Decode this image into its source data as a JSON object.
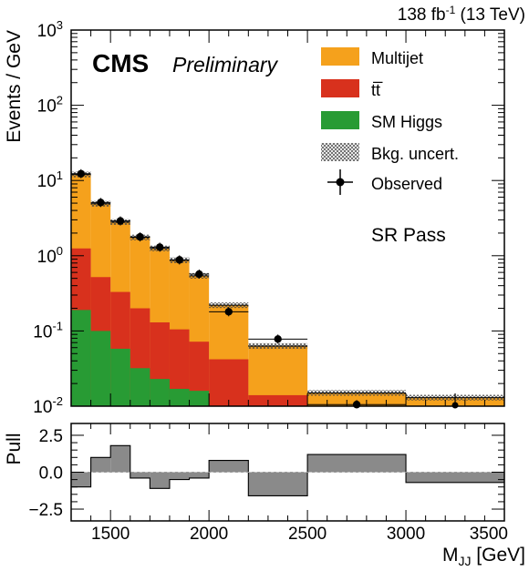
{
  "chart_data": [
    {
      "type": "stacked-step-histogram",
      "panel": "main",
      "lumi_label": {
        "value": "138 fb",
        "sup": "-1",
        "suffix": " (13 TeV)"
      },
      "experiment": "CMS",
      "status": "Preliminary",
      "region": "SR Pass",
      "ylabel": "Events / GeV",
      "yscale": "log",
      "ylim": [
        0.01,
        1000
      ],
      "xlim": [
        1300,
        3500
      ],
      "bin_edges": [
        1300,
        1400,
        1500,
        1600,
        1700,
        1800,
        1900,
        2000,
        2200,
        2500,
        3000,
        3500
      ],
      "series": [
        {
          "name": "Multijet",
          "color": "#f5a11c",
          "stack_top": [
            12.0,
            4.9,
            2.8,
            1.75,
            1.25,
            0.87,
            0.54,
            0.22,
            0.063,
            0.015,
            0.013
          ]
        },
        {
          "name": "tt̅",
          "color": "#d8311d",
          "stack_top": [
            1.25,
            0.52,
            0.33,
            0.2,
            0.13,
            0.105,
            0.072,
            0.042,
            0.014,
            0.0,
            0.0
          ]
        },
        {
          "name": "SM Higgs",
          "color": "#289b34",
          "stack_top": [
            0.19,
            0.1,
            0.058,
            0.032,
            0.023,
            0.017,
            0.016,
            0.0,
            0.0,
            0.0,
            0.0
          ]
        }
      ],
      "uncertainty_label": "Bkg. uncert.",
      "observed": {
        "name": "Observed",
        "x": [
          1350,
          1450,
          1550,
          1650,
          1750,
          1850,
          1950,
          2100,
          2350,
          2750,
          3250
        ],
        "y": [
          12.3,
          5.1,
          2.9,
          1.78,
          1.3,
          0.88,
          0.57,
          0.18,
          0.078,
          0.0105,
          0.0
        ]
      },
      "ytick_labels": [
        {
          "base": "10",
          "exp": "-2",
          "value": 0.01
        },
        {
          "base": "10",
          "exp": "-1",
          "value": 0.1
        },
        {
          "base": "10",
          "exp": "0",
          "value": 1
        },
        {
          "base": "10",
          "exp": "1",
          "value": 10
        },
        {
          "base": "10",
          "exp": "2",
          "value": 100
        },
        {
          "base": "10",
          "exp": "3",
          "value": 1000
        }
      ]
    },
    {
      "type": "step-bar",
      "panel": "pull",
      "ylabel": "Pull",
      "xlabel_main": "M",
      "xlabel_sub": "JJ",
      "xlabel_unit": " [GeV]",
      "ylim": [
        -3.3,
        3.3
      ],
      "bin_edges": [
        1300,
        1400,
        1500,
        1600,
        1700,
        1800,
        1900,
        2000,
        2200,
        2500,
        3000,
        3500
      ],
      "values": [
        -1.0,
        1.0,
        1.8,
        -0.4,
        -1.1,
        -0.5,
        -0.4,
        0.8,
        -1.6,
        1.2,
        -0.7
      ],
      "color": "#8a8a8a",
      "ytick_labels": [
        {
          "label": "2.5",
          "value": 2.5
        },
        {
          "label": "0.0",
          "value": 0.0
        },
        {
          "label": "−2.5",
          "value": -2.5
        }
      ],
      "xtick_labels": [
        {
          "label": "1500",
          "value": 1500
        },
        {
          "label": "2000",
          "value": 2000
        },
        {
          "label": "2500",
          "value": 2500
        },
        {
          "label": "3000",
          "value": 3000
        },
        {
          "label": "3500",
          "value": 3500
        }
      ]
    }
  ]
}
